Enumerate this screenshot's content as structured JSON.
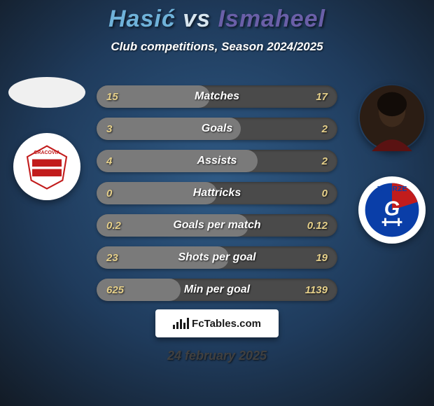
{
  "colors": {
    "bg_dark": "#121a24",
    "bg_blue": "#1f3b5c",
    "bg_light": "#2f5a85",
    "title_player1": "#6fb2d9",
    "title_vs": "#d8e6ef",
    "title_player2": "#6a5fa8",
    "text_white": "#ffffff",
    "row_bg": "#4a4a4a",
    "row_fill": "#7a7a7a",
    "stat_value": "#e6d08a",
    "avatar_blank": "#f0f0f0",
    "badge1_bg": "#ffffff",
    "badge1_accent": "#c21c1c",
    "avatar2_bg": "#2b1d14",
    "badge2_bg": "#ffffff",
    "badge2_blue": "#0a3ea8",
    "badge2_red": "#c21c1c",
    "footer_date": "#404040"
  },
  "title": {
    "player1": "Hasić",
    "vs": "vs",
    "player2": "Ismaheel"
  },
  "subtitle": "Club competitions, Season 2024/2025",
  "stats": {
    "rows": [
      {
        "label": "Matches",
        "left": "15",
        "right": "17",
        "fill_pct": 47
      },
      {
        "label": "Goals",
        "left": "3",
        "right": "2",
        "fill_pct": 60
      },
      {
        "label": "Assists",
        "left": "4",
        "right": "2",
        "fill_pct": 67
      },
      {
        "label": "Hattricks",
        "left": "0",
        "right": "0",
        "fill_pct": 50
      },
      {
        "label": "Goals per match",
        "left": "0.2",
        "right": "0.12",
        "fill_pct": 63
      },
      {
        "label": "Shots per goal",
        "left": "23",
        "right": "19",
        "fill_pct": 55
      },
      {
        "label": "Min per goal",
        "left": "625",
        "right": "1139",
        "fill_pct": 35
      }
    ]
  },
  "footer": {
    "brand": "FcTables.com",
    "date": "24 february 2025"
  },
  "badges": {
    "left_text": "CRACOVIA",
    "right_text": "ZABRZE"
  }
}
